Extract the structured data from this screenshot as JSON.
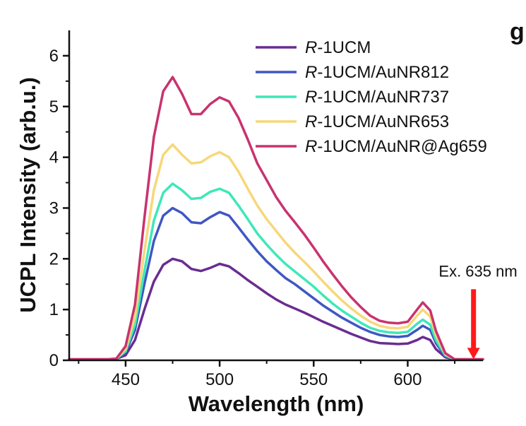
{
  "panel_letter": "g",
  "chart_data": {
    "type": "line",
    "xlabel": "Wavelength (nm)",
    "ylabel": "UCPL Intensity (arb.u.)",
    "xlim": [
      420,
      640
    ],
    "ylim": [
      0,
      6.5
    ],
    "xticks": [
      450,
      500,
      550,
      600
    ],
    "yticks": [
      0,
      1,
      2,
      3,
      4,
      5,
      6
    ],
    "grid": false,
    "legend_position": "top-right",
    "x": [
      420,
      430,
      440,
      445,
      450,
      455,
      460,
      465,
      470,
      475,
      480,
      485,
      490,
      495,
      500,
      505,
      510,
      515,
      520,
      525,
      530,
      535,
      540,
      545,
      550,
      555,
      560,
      565,
      570,
      575,
      580,
      585,
      590,
      595,
      600,
      605,
      608,
      612,
      615,
      620,
      625,
      630,
      635,
      640
    ],
    "series": [
      {
        "name_prefix": "R",
        "name_suffix": "-1UCM",
        "color": "#6a2c91",
        "values": [
          0.02,
          0.02,
          0.02,
          0.03,
          0.1,
          0.4,
          1.0,
          1.55,
          1.88,
          2.0,
          1.95,
          1.8,
          1.76,
          1.82,
          1.9,
          1.85,
          1.72,
          1.58,
          1.45,
          1.32,
          1.2,
          1.1,
          1.02,
          0.94,
          0.85,
          0.76,
          0.68,
          0.6,
          0.52,
          0.45,
          0.38,
          0.34,
          0.33,
          0.32,
          0.33,
          0.4,
          0.46,
          0.4,
          0.22,
          0.06,
          0.02,
          0.02,
          0.02,
          0.02
        ]
      },
      {
        "name_prefix": "R",
        "name_suffix": "-1UCM/AuNR812",
        "color": "#3f57c2",
        "values": [
          0.02,
          0.02,
          0.02,
          0.03,
          0.15,
          0.6,
          1.5,
          2.35,
          2.85,
          3.0,
          2.9,
          2.72,
          2.7,
          2.82,
          2.92,
          2.85,
          2.62,
          2.38,
          2.15,
          1.95,
          1.78,
          1.62,
          1.5,
          1.36,
          1.22,
          1.08,
          0.96,
          0.84,
          0.74,
          0.64,
          0.56,
          0.5,
          0.47,
          0.46,
          0.48,
          0.6,
          0.68,
          0.6,
          0.34,
          0.08,
          0.02,
          0.02,
          0.02,
          0.02
        ]
      },
      {
        "name_prefix": "R",
        "name_suffix": "-1UCM/AuNR737",
        "color": "#3ee8b8",
        "values": [
          0.02,
          0.02,
          0.02,
          0.03,
          0.18,
          0.7,
          1.75,
          2.75,
          3.3,
          3.48,
          3.35,
          3.18,
          3.2,
          3.32,
          3.38,
          3.3,
          3.05,
          2.78,
          2.5,
          2.28,
          2.08,
          1.9,
          1.75,
          1.6,
          1.45,
          1.28,
          1.12,
          0.98,
          0.86,
          0.74,
          0.64,
          0.58,
          0.55,
          0.54,
          0.56,
          0.72,
          0.8,
          0.7,
          0.4,
          0.1,
          0.02,
          0.02,
          0.02,
          0.02
        ]
      },
      {
        "name_prefix": "R",
        "name_suffix": "-1UCM/AuNR653",
        "color": "#f7d77a",
        "values": [
          0.02,
          0.02,
          0.02,
          0.03,
          0.22,
          0.85,
          2.15,
          3.35,
          4.05,
          4.25,
          4.05,
          3.88,
          3.9,
          4.02,
          4.1,
          4.0,
          3.72,
          3.38,
          3.05,
          2.78,
          2.55,
          2.32,
          2.12,
          1.94,
          1.75,
          1.55,
          1.36,
          1.18,
          1.02,
          0.88,
          0.76,
          0.68,
          0.64,
          0.63,
          0.66,
          0.88,
          1.0,
          0.86,
          0.5,
          0.12,
          0.02,
          0.02,
          0.02,
          0.02
        ]
      },
      {
        "name_prefix": "R",
        "name_suffix": "-1UCM/AuNR@Ag659",
        "color": "#c8336f",
        "values": [
          0.02,
          0.02,
          0.02,
          0.03,
          0.28,
          1.1,
          2.8,
          4.4,
          5.3,
          5.58,
          5.25,
          4.85,
          4.85,
          5.05,
          5.18,
          5.1,
          4.78,
          4.35,
          3.88,
          3.55,
          3.22,
          2.95,
          2.72,
          2.48,
          2.22,
          1.95,
          1.7,
          1.46,
          1.24,
          1.05,
          0.88,
          0.78,
          0.74,
          0.73,
          0.76,
          1.0,
          1.14,
          0.98,
          0.58,
          0.14,
          0.02,
          0.02,
          0.02,
          0.02
        ]
      }
    ],
    "annotations": [
      {
        "text": "Ex. 635 nm",
        "x": 635,
        "arrow_from_y": 1.4,
        "arrow_to_y": 0.05,
        "color": "#ff1a1a"
      }
    ]
  }
}
